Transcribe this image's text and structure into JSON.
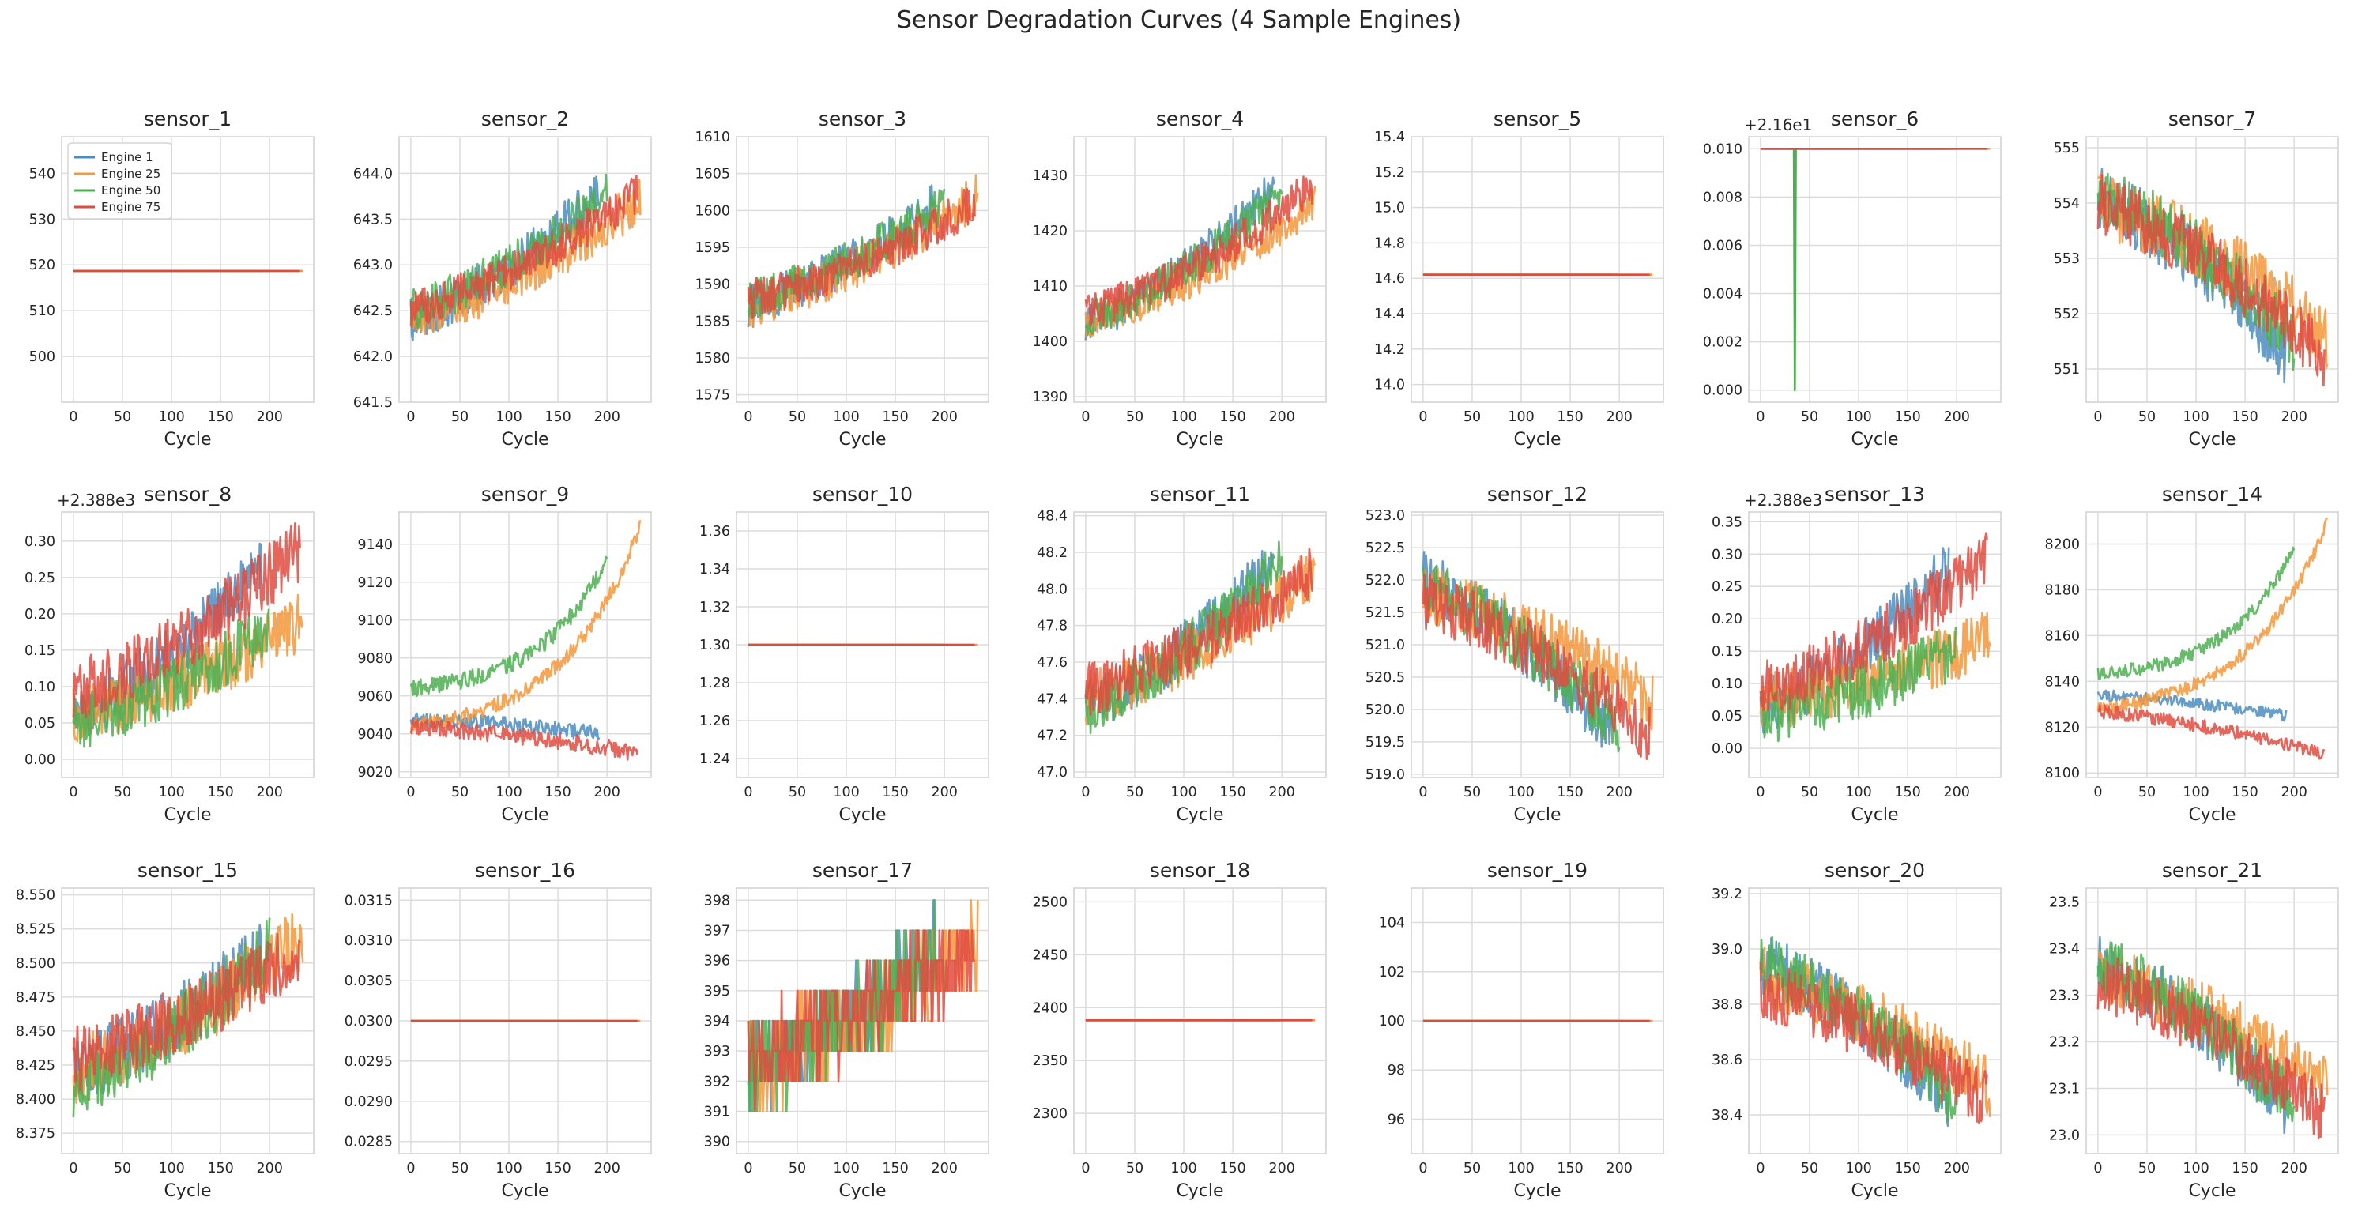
{
  "title": "Sensor Degradation Curves (4 Sample Engines)",
  "colors": {
    "Engine 1": "#4c8dc0",
    "Engine 25": "#f5973a",
    "Engine 50": "#4caf50",
    "Engine 75": "#e04b3f"
  },
  "chart_data": [
    {
      "type": "line",
      "title": "sensor_1",
      "xlabel": "Cycle",
      "ylim": [
        490,
        548
      ],
      "yticks": [
        "500",
        "510",
        "520",
        "530",
        "540"
      ],
      "xticks": [
        "0",
        "50",
        "100",
        "150",
        "200"
      ],
      "xlim": [
        -12,
        245
      ],
      "legend": [
        "Engine 1",
        "Engine 25",
        "Engine 50",
        "Engine 75"
      ],
      "legend_position": "upper left",
      "series": [
        {
          "name": "Engine 1",
          "const": 518.67
        },
        {
          "name": "Engine 25",
          "const": 518.67
        },
        {
          "name": "Engine 50",
          "const": 518.67
        },
        {
          "name": "Engine 75",
          "const": 518.67
        }
      ]
    },
    {
      "type": "line",
      "title": "sensor_2",
      "xlabel": "Cycle",
      "ylim": [
        641.5,
        644.4
      ],
      "yticks": [
        "641.5",
        "642.0",
        "642.5",
        "643.0",
        "643.5",
        "644.0"
      ],
      "xticks": [
        "0",
        "50",
        "100",
        "150",
        "200"
      ],
      "xlim": [
        -12,
        245
      ],
      "series": [
        {
          "name": "Engine 1",
          "start": 642.4,
          "end": 643.8,
          "noise": 0.5
        },
        {
          "name": "Engine 25",
          "start": 642.4,
          "end": 643.7,
          "noise": 0.5
        },
        {
          "name": "Engine 50",
          "start": 642.5,
          "end": 643.8,
          "noise": 0.45
        },
        {
          "name": "Engine 75",
          "start": 642.5,
          "end": 643.8,
          "noise": 0.45
        }
      ]
    },
    {
      "type": "line",
      "title": "sensor_3",
      "xlabel": "Cycle",
      "ylim": [
        1574,
        1610
      ],
      "yticks": [
        "1575",
        "1580",
        "1585",
        "1590",
        "1595",
        "1600",
        "1605",
        "1610"
      ],
      "xticks": [
        "0",
        "50",
        "100",
        "150",
        "200"
      ],
      "xlim": [
        -12,
        245
      ],
      "series": [
        {
          "name": "Engine 1",
          "start": 1587,
          "end": 1601,
          "noise": 6
        },
        {
          "name": "Engine 25",
          "start": 1587,
          "end": 1602,
          "noise": 6
        },
        {
          "name": "Engine 50",
          "start": 1588,
          "end": 1601,
          "noise": 5.5
        },
        {
          "name": "Engine 75",
          "start": 1588,
          "end": 1601,
          "noise": 5.5
        }
      ]
    },
    {
      "type": "line",
      "title": "sensor_4",
      "xlabel": "Cycle",
      "ylim": [
        1389,
        1437
      ],
      "yticks": [
        "1390",
        "1400",
        "1410",
        "1420",
        "1430"
      ],
      "xticks": [
        "0",
        "50",
        "100",
        "150",
        "200"
      ],
      "xlim": [
        -12,
        245
      ],
      "series": [
        {
          "name": "Engine 1",
          "start": 1403,
          "end": 1428,
          "noise": 7
        },
        {
          "name": "Engine 25",
          "start": 1404,
          "end": 1425,
          "noise": 7
        },
        {
          "name": "Engine 50",
          "start": 1404,
          "end": 1427,
          "noise": 7
        },
        {
          "name": "Engine 75",
          "start": 1405,
          "end": 1428,
          "noise": 7
        }
      ]
    },
    {
      "type": "line",
      "title": "sensor_5",
      "xlabel": "Cycle",
      "ylim": [
        13.9,
        15.4
      ],
      "yticks": [
        "14.0",
        "14.2",
        "14.4",
        "14.6",
        "14.8",
        "15.0",
        "15.2",
        "15.4"
      ],
      "xticks": [
        "0",
        "50",
        "100",
        "150",
        "200"
      ],
      "xlim": [
        -12,
        245
      ],
      "series": [
        {
          "name": "Engine 1",
          "const": 14.62
        },
        {
          "name": "Engine 25",
          "const": 14.62
        },
        {
          "name": "Engine 50",
          "const": 14.62
        },
        {
          "name": "Engine 75",
          "const": 14.62
        }
      ]
    },
    {
      "type": "line",
      "title": "sensor_6",
      "xlabel": "Cycle",
      "offset_label": "+2.16e1",
      "ylim": [
        -0.0005,
        0.0105
      ],
      "yticks": [
        "0.000",
        "0.002",
        "0.004",
        "0.006",
        "0.008",
        "0.010"
      ],
      "xticks": [
        "0",
        "50",
        "100",
        "150",
        "200"
      ],
      "xlim": [
        -12,
        245
      ],
      "series": [
        {
          "name": "Engine 1",
          "const": 0.01
        },
        {
          "name": "Engine 25",
          "const": 0.01
        },
        {
          "name": "Engine 50",
          "const": 0.01,
          "dip_cycle": 35,
          "dip_value": 0.0
        },
        {
          "name": "Engine 75",
          "const": 0.01
        }
      ]
    },
    {
      "type": "line",
      "title": "sensor_7",
      "xlabel": "Cycle",
      "ylim": [
        550.4,
        555.2
      ],
      "yticks": [
        "551",
        "552",
        "553",
        "554",
        "555"
      ],
      "xticks": [
        "0",
        "50",
        "100",
        "150",
        "200"
      ],
      "xlim": [
        -12,
        245
      ],
      "series": [
        {
          "name": "Engine 1",
          "start": 554.1,
          "end": 551.3,
          "noise": 1.2
        },
        {
          "name": "Engine 25",
          "start": 554.0,
          "end": 551.6,
          "noise": 1.2
        },
        {
          "name": "Engine 50",
          "start": 554.2,
          "end": 551.5,
          "noise": 1.1
        },
        {
          "name": "Engine 75",
          "start": 554.0,
          "end": 551.2,
          "noise": 1.1
        }
      ]
    },
    {
      "type": "line",
      "title": "sensor_8",
      "xlabel": "Cycle",
      "offset_label": "+2.388e3",
      "ylim": [
        -0.025,
        0.34
      ],
      "yticks": [
        "0.00",
        "0.05",
        "0.10",
        "0.15",
        "0.20",
        "0.25",
        "0.30"
      ],
      "xticks": [
        "0",
        "50",
        "100",
        "150",
        "200"
      ],
      "xlim": [
        -12,
        245
      ],
      "series": [
        {
          "name": "Engine 1",
          "start": 0.06,
          "end": 0.27,
          "noise": 0.08
        },
        {
          "name": "Engine 25",
          "start": 0.06,
          "end": 0.19,
          "noise": 0.08
        },
        {
          "name": "Engine 50",
          "start": 0.05,
          "end": 0.18,
          "noise": 0.08
        },
        {
          "name": "Engine 75",
          "start": 0.09,
          "end": 0.29,
          "noise": 0.09
        }
      ]
    },
    {
      "type": "line",
      "title": "sensor_9",
      "xlabel": "Cycle",
      "ylim": [
        9017,
        9157
      ],
      "yticks": [
        "9020",
        "9040",
        "9060",
        "9080",
        "9100",
        "9120",
        "9140"
      ],
      "xticks": [
        "0",
        "50",
        "100",
        "150",
        "200"
      ],
      "xlim": [
        -12,
        245
      ],
      "series": [
        {
          "name": "Engine 1",
          "start": 9048,
          "end": 9040,
          "noise": 8
        },
        {
          "name": "Engine 25",
          "start": 9044,
          "end": 9150,
          "noise": 8,
          "curve": "exp"
        },
        {
          "name": "Engine 50",
          "start": 9064,
          "end": 9133,
          "noise": 9,
          "curve": "exp"
        },
        {
          "name": "Engine 75",
          "start": 9044,
          "end": 9030,
          "noise": 9
        }
      ]
    },
    {
      "type": "line",
      "title": "sensor_10",
      "xlabel": "Cycle",
      "ylim": [
        1.23,
        1.37
      ],
      "yticks": [
        "1.24",
        "1.26",
        "1.28",
        "1.30",
        "1.32",
        "1.34",
        "1.36"
      ],
      "xticks": [
        "0",
        "50",
        "100",
        "150",
        "200"
      ],
      "xlim": [
        -12,
        245
      ],
      "series": [
        {
          "name": "Engine 1",
          "const": 1.3
        },
        {
          "name": "Engine 25",
          "const": 1.3
        },
        {
          "name": "Engine 50",
          "const": 1.3
        },
        {
          "name": "Engine 75",
          "const": 1.3
        }
      ]
    },
    {
      "type": "line",
      "title": "sensor_11",
      "xlabel": "Cycle",
      "ylim": [
        46.97,
        48.42
      ],
      "yticks": [
        "47.0",
        "47.2",
        "47.4",
        "47.6",
        "47.8",
        "48.0",
        "48.2",
        "48.4"
      ],
      "xticks": [
        "0",
        "50",
        "100",
        "150",
        "200"
      ],
      "xlim": [
        -12,
        245
      ],
      "series": [
        {
          "name": "Engine 1",
          "start": 47.35,
          "end": 48.15,
          "noise": 0.3
        },
        {
          "name": "Engine 25",
          "start": 47.4,
          "end": 48.1,
          "noise": 0.3
        },
        {
          "name": "Engine 50",
          "start": 47.35,
          "end": 48.15,
          "noise": 0.3
        },
        {
          "name": "Engine 75",
          "start": 47.45,
          "end": 48.1,
          "noise": 0.3
        }
      ]
    },
    {
      "type": "line",
      "title": "sensor_12",
      "xlabel": "Cycle",
      "ylim": [
        518.95,
        523.05
      ],
      "yticks": [
        "519.0",
        "519.5",
        "520.0",
        "520.5",
        "521.0",
        "521.5",
        "522.0",
        "522.5",
        "523.0"
      ],
      "xticks": [
        "0",
        "50",
        "100",
        "150",
        "200"
      ],
      "xlim": [
        -12,
        245
      ],
      "series": [
        {
          "name": "Engine 1",
          "start": 522.0,
          "end": 519.6,
          "noise": 0.9
        },
        {
          "name": "Engine 25",
          "start": 521.8,
          "end": 520.1,
          "noise": 0.9
        },
        {
          "name": "Engine 50",
          "start": 521.9,
          "end": 519.7,
          "noise": 0.9
        },
        {
          "name": "Engine 75",
          "start": 521.7,
          "end": 519.6,
          "noise": 0.9
        }
      ]
    },
    {
      "type": "line",
      "title": "sensor_13",
      "xlabel": "Cycle",
      "offset_label": "+2.388e3",
      "ylim": [
        -0.045,
        0.365
      ],
      "yticks": [
        "0.00",
        "0.05",
        "0.10",
        "0.15",
        "0.20",
        "0.25",
        "0.30",
        "0.35"
      ],
      "xticks": [
        "0",
        "50",
        "100",
        "150",
        "200"
      ],
      "xlim": [
        -12,
        245
      ],
      "series": [
        {
          "name": "Engine 1",
          "start": 0.06,
          "end": 0.28,
          "noise": 0.09
        },
        {
          "name": "Engine 25",
          "start": 0.07,
          "end": 0.17,
          "noise": 0.09
        },
        {
          "name": "Engine 50",
          "start": 0.05,
          "end": 0.15,
          "noise": 0.09
        },
        {
          "name": "Engine 75",
          "start": 0.09,
          "end": 0.29,
          "noise": 0.09
        }
      ]
    },
    {
      "type": "line",
      "title": "sensor_14",
      "xlabel": "Cycle",
      "ylim": [
        8098,
        8214
      ],
      "yticks": [
        "8100",
        "8120",
        "8140",
        "8160",
        "8180",
        "8200"
      ],
      "xticks": [
        "0",
        "50",
        "100",
        "150",
        "200"
      ],
      "xlim": [
        -12,
        245
      ],
      "series": [
        {
          "name": "Engine 1",
          "start": 8134,
          "end": 8125,
          "noise": 5
        },
        {
          "name": "Engine 25",
          "start": 8128,
          "end": 8210,
          "noise": 6,
          "curve": "exp"
        },
        {
          "name": "Engine 50",
          "start": 8143,
          "end": 8198,
          "noise": 6,
          "curve": "exp"
        },
        {
          "name": "Engine 75",
          "start": 8127,
          "end": 8108,
          "noise": 6
        }
      ]
    },
    {
      "type": "line",
      "title": "sensor_15",
      "xlabel": "Cycle",
      "ylim": [
        8.36,
        8.555
      ],
      "yticks": [
        "8.375",
        "8.400",
        "8.425",
        "8.450",
        "8.475",
        "8.500",
        "8.525",
        "8.550"
      ],
      "xticks": [
        "0",
        "50",
        "100",
        "150",
        "200"
      ],
      "xlim": [
        -12,
        245
      ],
      "series": [
        {
          "name": "Engine 1",
          "start": 8.42,
          "end": 8.51,
          "noise": 0.05
        },
        {
          "name": "Engine 25",
          "start": 8.42,
          "end": 8.52,
          "noise": 0.05
        },
        {
          "name": "Engine 50",
          "start": 8.41,
          "end": 8.51,
          "noise": 0.05
        },
        {
          "name": "Engine 75",
          "start": 8.43,
          "end": 8.51,
          "noise": 0.05
        }
      ]
    },
    {
      "type": "line",
      "title": "sensor_16",
      "xlabel": "Cycle",
      "ylim": [
        0.02835,
        0.03165
      ],
      "yticks": [
        "0.0285",
        "0.0290",
        "0.0295",
        "0.0300",
        "0.0305",
        "0.0310",
        "0.0315"
      ],
      "xticks": [
        "0",
        "50",
        "100",
        "150",
        "200"
      ],
      "xlim": [
        -12,
        245
      ],
      "series": [
        {
          "name": "Engine 1",
          "const": 0.03
        },
        {
          "name": "Engine 25",
          "const": 0.03
        },
        {
          "name": "Engine 50",
          "const": 0.03
        },
        {
          "name": "Engine 75",
          "const": 0.03
        }
      ]
    },
    {
      "type": "line",
      "title": "sensor_17",
      "xlabel": "Cycle",
      "ylim": [
        389.6,
        398.4
      ],
      "yticks": [
        "390",
        "391",
        "392",
        "393",
        "394",
        "395",
        "396",
        "397",
        "398"
      ],
      "xticks": [
        "0",
        "50",
        "100",
        "150",
        "200"
      ],
      "xlim": [
        -12,
        245
      ],
      "series": [
        {
          "name": "Engine 1",
          "start": 392.5,
          "end": 396.5,
          "noise": 3,
          "integer": true
        },
        {
          "name": "Engine 25",
          "start": 392.5,
          "end": 396.5,
          "noise": 3,
          "integer": true
        },
        {
          "name": "Engine 50",
          "start": 392.5,
          "end": 396.5,
          "noise": 3,
          "integer": true
        },
        {
          "name": "Engine 75",
          "start": 392.8,
          "end": 396.5,
          "noise": 3,
          "integer": true
        }
      ]
    },
    {
      "type": "line",
      "title": "sensor_18",
      "xlabel": "Cycle",
      "ylim": [
        2262,
        2513
      ],
      "yticks": [
        "2300",
        "2350",
        "2400",
        "2450",
        "2500"
      ],
      "xticks": [
        "0",
        "50",
        "100",
        "150",
        "200"
      ],
      "xlim": [
        -12,
        245
      ],
      "series": [
        {
          "name": "Engine 1",
          "const": 2388
        },
        {
          "name": "Engine 25",
          "const": 2388
        },
        {
          "name": "Engine 50",
          "const": 2388
        },
        {
          "name": "Engine 75",
          "const": 2388
        }
      ]
    },
    {
      "type": "line",
      "title": "sensor_19",
      "xlabel": "Cycle",
      "ylim": [
        94.6,
        105.4
      ],
      "yticks": [
        "96",
        "98",
        "100",
        "102",
        "104"
      ],
      "xticks": [
        "0",
        "50",
        "100",
        "150",
        "200"
      ],
      "xlim": [
        -12,
        245
      ],
      "series": [
        {
          "name": "Engine 1",
          "const": 100
        },
        {
          "name": "Engine 25",
          "const": 100
        },
        {
          "name": "Engine 50",
          "const": 100
        },
        {
          "name": "Engine 75",
          "const": 100
        }
      ]
    },
    {
      "type": "line",
      "title": "sensor_20",
      "xlabel": "Cycle",
      "ylim": [
        38.26,
        39.22
      ],
      "yticks": [
        "38.4",
        "38.6",
        "38.8",
        "39.0",
        "39.2"
      ],
      "xticks": [
        "0",
        "50",
        "100",
        "150",
        "200"
      ],
      "xlim": [
        -12,
        245
      ],
      "series": [
        {
          "name": "Engine 1",
          "start": 38.95,
          "end": 38.45,
          "noise": 0.22
        },
        {
          "name": "Engine 25",
          "start": 38.9,
          "end": 38.5,
          "noise": 0.22
        },
        {
          "name": "Engine 50",
          "start": 38.95,
          "end": 38.45,
          "noise": 0.22
        },
        {
          "name": "Engine 75",
          "start": 38.85,
          "end": 38.45,
          "noise": 0.22
        }
      ]
    },
    {
      "type": "line",
      "title": "sensor_21",
      "xlabel": "Cycle",
      "ylim": [
        22.96,
        23.53
      ],
      "yticks": [
        "23.0",
        "23.1",
        "23.2",
        "23.3",
        "23.4",
        "23.5"
      ],
      "xticks": [
        "0",
        "50",
        "100",
        "150",
        "200"
      ],
      "xlim": [
        -12,
        245
      ],
      "series": [
        {
          "name": "Engine 1",
          "start": 23.37,
          "end": 23.06,
          "noise": 0.13
        },
        {
          "name": "Engine 25",
          "start": 23.35,
          "end": 23.1,
          "noise": 0.13
        },
        {
          "name": "Engine 50",
          "start": 23.37,
          "end": 23.06,
          "noise": 0.13
        },
        {
          "name": "Engine 75",
          "start": 23.33,
          "end": 23.04,
          "noise": 0.13
        }
      ]
    }
  ]
}
